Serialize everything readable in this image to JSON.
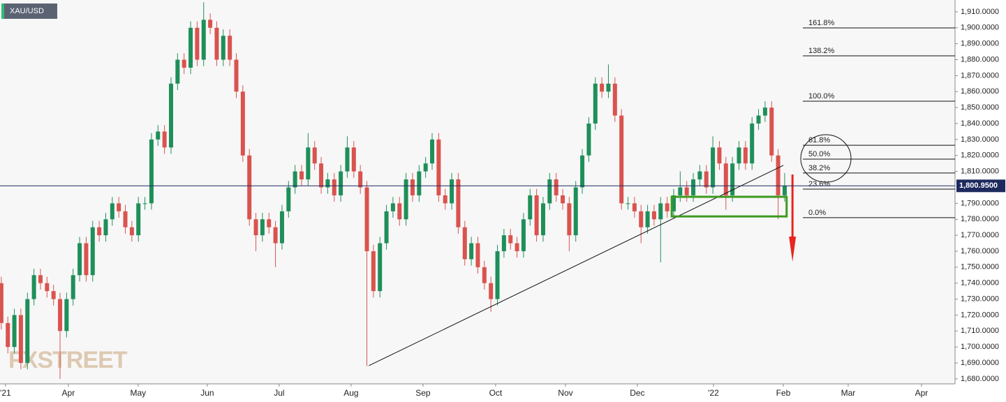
{
  "chart_data": {
    "type": "candlestick",
    "title": "XAU/USD",
    "watermark": "FXSTREET",
    "up_color": "#1f8f5a",
    "down_color": "#d9534f",
    "grid": false,
    "xlim": [
      -0.2,
      146.1
    ],
    "xticks": [
      {
        "value": 0.64,
        "label": "'21"
      },
      {
        "value": 10.27,
        "label": "Apr"
      },
      {
        "value": 20.96,
        "label": "May"
      },
      {
        "value": 31.55,
        "label": "Jun"
      },
      {
        "value": 42.57,
        "label": "Jul"
      },
      {
        "value": 53.58,
        "label": "Aug"
      },
      {
        "value": 64.6,
        "label": "Sep"
      },
      {
        "value": 75.72,
        "label": "Oct"
      },
      {
        "value": 86.42,
        "label": "Nov"
      },
      {
        "value": 97.43,
        "label": "Dec"
      },
      {
        "value": 109.09,
        "label": "'22"
      },
      {
        "value": 119.79,
        "label": "Feb"
      },
      {
        "value": 129.73,
        "label": "Mar"
      },
      {
        "value": 140.96,
        "label": "Apr"
      }
    ],
    "ylim": [
      1676.9,
      1917.4
    ],
    "yticks": [
      {
        "value": 1910,
        "label": "1,910.0000"
      },
      {
        "value": 1900,
        "label": "1,900.0000"
      },
      {
        "value": 1890,
        "label": "1,890.0000"
      },
      {
        "value": 1880,
        "label": "1,880.0000"
      },
      {
        "value": 1870,
        "label": "1,870.0000"
      },
      {
        "value": 1860,
        "label": "1,860.0000"
      },
      {
        "value": 1850,
        "label": "1,850.0000"
      },
      {
        "value": 1840,
        "label": "1,840.0000"
      },
      {
        "value": 1830,
        "label": "1,830.0000"
      },
      {
        "value": 1820,
        "label": "1,820.0000"
      },
      {
        "value": 1810,
        "label": "1,810.0000"
      },
      {
        "value": 1790,
        "label": "1,790.0000"
      },
      {
        "value": 1780,
        "label": "1,780.0000"
      },
      {
        "value": 1770,
        "label": "1,770.0000"
      },
      {
        "value": 1760,
        "label": "1,760.0000"
      },
      {
        "value": 1750,
        "label": "1,750.0000"
      },
      {
        "value": 1740,
        "label": "1,740.0000"
      },
      {
        "value": 1730,
        "label": "1,730.0000"
      },
      {
        "value": 1720,
        "label": "1,720.0000"
      },
      {
        "value": 1710,
        "label": "1,710.0000"
      },
      {
        "value": 1700,
        "label": "1,700.0000"
      },
      {
        "value": 1690,
        "label": "1,690.0000"
      },
      {
        "value": 1680,
        "label": "1,680.0000"
      }
    ],
    "x": [
      0,
      1,
      2,
      3,
      4,
      5,
      6,
      7,
      8,
      9,
      10,
      11,
      12,
      13,
      14,
      15,
      16,
      17,
      18,
      19,
      20,
      21,
      22,
      23,
      24,
      25,
      26,
      27,
      28,
      29,
      30,
      31,
      32,
      33,
      34,
      35,
      36,
      37,
      38,
      39,
      40,
      41,
      42,
      43,
      44,
      45,
      46,
      47,
      48,
      49,
      50,
      51,
      52,
      53,
      54,
      55,
      56,
      57,
      58,
      59,
      60,
      61,
      62,
      63,
      64,
      65,
      66,
      67,
      68,
      69,
      70,
      71,
      72,
      73,
      74,
      75,
      76,
      77,
      78,
      79,
      80,
      81,
      82,
      83,
      84,
      85,
      86,
      87,
      88,
      89,
      90,
      91,
      92,
      93,
      94,
      95,
      96,
      97,
      98,
      99,
      100,
      101,
      102,
      103,
      104,
      105,
      106,
      107,
      108,
      109,
      110,
      111,
      112,
      113,
      114,
      115,
      116,
      117,
      118,
      119,
      120
    ],
    "open": [
      1740,
      1715,
      1700,
      1720,
      1690,
      1730,
      1745,
      1740,
      1735,
      1730,
      1710,
      1730,
      1745,
      1765,
      1745,
      1775,
      1770,
      1780,
      1790,
      1785,
      1775,
      1770,
      1790,
      1790,
      1830,
      1835,
      1825,
      1865,
      1880,
      1875,
      1900,
      1880,
      1905,
      1900,
      1880,
      1895,
      1880,
      1860,
      1820,
      1780,
      1770,
      1780,
      1775,
      1765,
      1785,
      1800,
      1810,
      1805,
      1825,
      1815,
      1800,
      1805,
      1795,
      1810,
      1825,
      1810,
      1800,
      1760,
      1735,
      1765,
      1785,
      1790,
      1780,
      1805,
      1795,
      1810,
      1815,
      1830,
      1795,
      1790,
      1805,
      1775,
      1755,
      1765,
      1750,
      1740,
      1730,
      1760,
      1770,
      1765,
      1760,
      1780,
      1795,
      1770,
      1790,
      1805,
      1795,
      1790,
      1770,
      1800,
      1820,
      1840,
      1865,
      1860,
      1865,
      1845,
      1790,
      1790,
      1785,
      1775,
      1785,
      1780,
      1790,
      1785,
      1795,
      1800,
      1795,
      1805,
      1810,
      1800,
      1825,
      1815,
      1795,
      1815,
      1825,
      1815,
      1840,
      1845,
      1850,
      1820,
      1795
    ],
    "high": [
      1744,
      1719,
      1724,
      1724,
      1734,
      1749,
      1749,
      1744,
      1739,
      1734,
      1734,
      1749,
      1769,
      1769,
      1779,
      1779,
      1784,
      1794,
      1794,
      1789,
      1779,
      1794,
      1794,
      1834,
      1839,
      1839,
      1869,
      1884,
      1884,
      1904,
      1904,
      1916,
      1909,
      1904,
      1899,
      1899,
      1884,
      1864,
      1824,
      1784,
      1784,
      1784,
      1779,
      1789,
      1804,
      1814,
      1814,
      1834,
      1829,
      1819,
      1809,
      1809,
      1814,
      1832,
      1829,
      1814,
      1804,
      1764,
      1769,
      1789,
      1794,
      1794,
      1809,
      1809,
      1814,
      1819,
      1834,
      1834,
      1799,
      1809,
      1809,
      1779,
      1769,
      1769,
      1754,
      1744,
      1764,
      1774,
      1774,
      1769,
      1784,
      1799,
      1799,
      1794,
      1809,
      1809,
      1799,
      1794,
      1804,
      1824,
      1844,
      1869,
      1869,
      1877,
      1869,
      1849,
      1794,
      1794,
      1789,
      1789,
      1789,
      1794,
      1794,
      1799,
      1810,
      1804,
      1809,
      1814,
      1814,
      1832,
      1829,
      1819,
      1819,
      1829,
      1829,
      1844,
      1849,
      1854,
      1854,
      1824,
      1809
    ],
    "low": [
      1711,
      1696,
      1696,
      1686,
      1686,
      1726,
      1736,
      1731,
      1726,
      1680,
      1706,
      1726,
      1741,
      1741,
      1741,
      1766,
      1766,
      1776,
      1781,
      1771,
      1766,
      1766,
      1786,
      1786,
      1826,
      1821,
      1821,
      1861,
      1871,
      1871,
      1876,
      1876,
      1896,
      1876,
      1876,
      1876,
      1856,
      1816,
      1776,
      1760,
      1766,
      1771,
      1750,
      1761,
      1781,
      1796,
      1801,
      1801,
      1811,
      1796,
      1796,
      1791,
      1791,
      1806,
      1806,
      1796,
      1688,
      1731,
      1731,
      1761,
      1781,
      1776,
      1776,
      1791,
      1791,
      1806,
      1811,
      1791,
      1786,
      1786,
      1771,
      1751,
      1751,
      1746,
      1736,
      1722,
      1726,
      1756,
      1761,
      1756,
      1756,
      1776,
      1766,
      1766,
      1786,
      1791,
      1786,
      1760,
      1766,
      1796,
      1816,
      1836,
      1856,
      1856,
      1841,
      1786,
      1786,
      1781,
      1765,
      1771,
      1776,
      1753,
      1781,
      1781,
      1791,
      1791,
      1791,
      1801,
      1796,
      1796,
      1811,
      1786,
      1791,
      1811,
      1811,
      1811,
      1836,
      1841,
      1816,
      1780,
      1791
    ],
    "close": [
      1715,
      1700,
      1720,
      1690,
      1730,
      1745,
      1740,
      1735,
      1730,
      1710,
      1730,
      1745,
      1765,
      1745,
      1775,
      1770,
      1780,
      1790,
      1785,
      1775,
      1770,
      1790,
      1790,
      1830,
      1835,
      1825,
      1865,
      1880,
      1875,
      1900,
      1880,
      1905,
      1900,
      1880,
      1895,
      1880,
      1860,
      1820,
      1780,
      1770,
      1780,
      1775,
      1765,
      1785,
      1800,
      1810,
      1805,
      1825,
      1815,
      1800,
      1805,
      1795,
      1810,
      1825,
      1810,
      1800,
      1760,
      1735,
      1765,
      1785,
      1790,
      1780,
      1805,
      1795,
      1810,
      1815,
      1830,
      1795,
      1790,
      1805,
      1775,
      1755,
      1765,
      1750,
      1740,
      1730,
      1760,
      1770,
      1765,
      1760,
      1780,
      1795,
      1770,
      1790,
      1805,
      1795,
      1790,
      1770,
      1800,
      1820,
      1840,
      1865,
      1860,
      1865,
      1845,
      1790,
      1790,
      1785,
      1775,
      1785,
      1780,
      1790,
      1785,
      1795,
      1800,
      1795,
      1805,
      1810,
      1800,
      1825,
      1815,
      1795,
      1815,
      1825,
      1815,
      1840,
      1845,
      1850,
      1820,
      1795,
      1800.95
    ],
    "price_line": {
      "value": 1800.95,
      "label": "1,800.9500",
      "color": "#1e2a5e"
    },
    "fib_levels": [
      {
        "label": "161.8%",
        "value": 1899.9
      },
      {
        "label": "138.2%",
        "value": 1882.4
      },
      {
        "label": "100.0%",
        "value": 1854.0
      },
      {
        "label": "61.8%",
        "value": 1826.4
      },
      {
        "label": "50.0%",
        "value": 1817.7
      },
      {
        "label": "38.2%",
        "value": 1809.0
      },
      {
        "label": "23.6%",
        "value": 1798.9
      },
      {
        "label": "0.0%",
        "value": 1781.0
      }
    ],
    "trendline": {
      "x": [
        56.3,
        119.8
      ],
      "y": [
        1688.3,
        1813.8
      ]
    },
    "support_zone": {
      "x": [
        102.7,
        120.3
      ],
      "y": [
        1781.8,
        1794.1
      ],
      "color": "#3c9a1e"
    },
    "arrow": {
      "x": 121.2,
      "y": [
        1808.1,
        1753.4
      ],
      "color": "#e8251e"
    }
  }
}
